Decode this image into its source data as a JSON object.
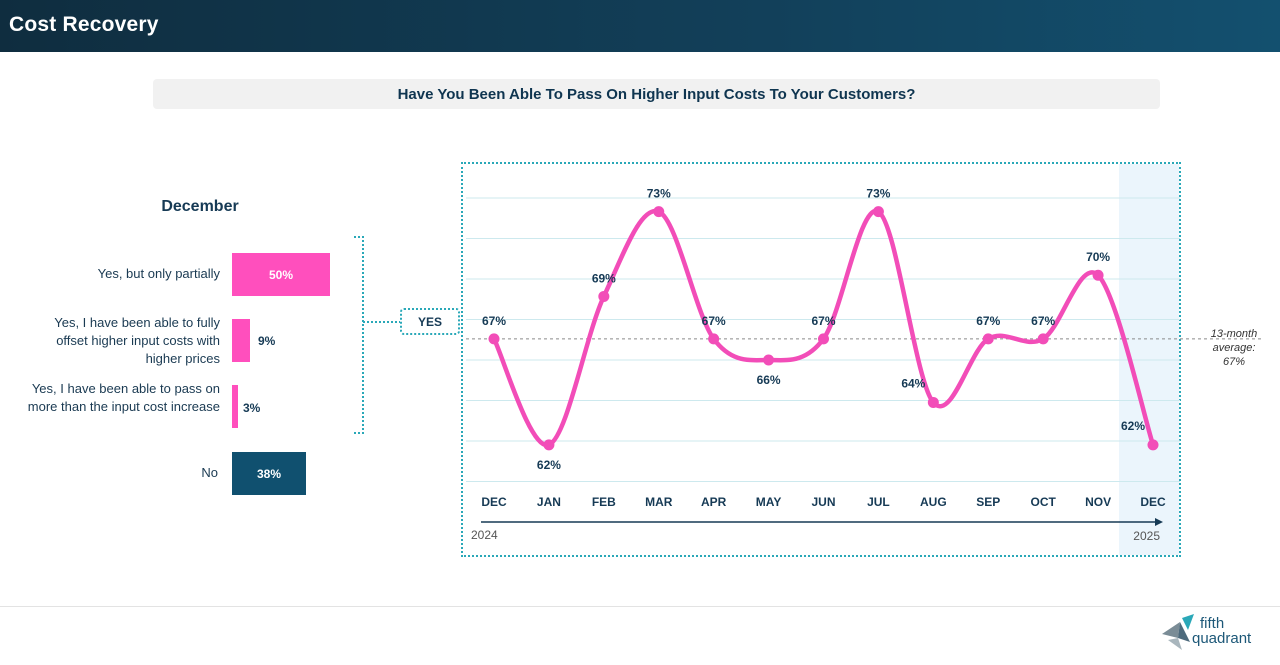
{
  "header": {
    "title": "Cost Recovery"
  },
  "question": "Have You Been Able To Pass On Higher Input Costs To Your Customers?",
  "breakdown": {
    "title": "December",
    "group_label": "YES",
    "items": [
      {
        "label": "Yes, but only partially",
        "value": 50,
        "value_text": "50%",
        "color": "#ff4fbd"
      },
      {
        "label": "Yes, I have been able to fully offset higher input costs with higher prices",
        "value": 9,
        "value_text": "9%",
        "color": "#ff4fbd"
      },
      {
        "label": "Yes, I have been able to pass on more than the input cost increase",
        "value": 3,
        "value_text": "3%",
        "color": "#ff4fbd"
      },
      {
        "label": "No",
        "value": 38,
        "value_text": "38%",
        "color": "#10506f"
      }
    ]
  },
  "chart_data": {
    "type": "line",
    "categories": [
      "DEC",
      "JAN",
      "FEB",
      "MAR",
      "APR",
      "MAY",
      "JUN",
      "JUL",
      "AUG",
      "SEP",
      "OCT",
      "NOV",
      "DEC"
    ],
    "series": [
      {
        "name": "Yes",
        "values": [
          67,
          62,
          69,
          73,
          67,
          66,
          67,
          73,
          64,
          67,
          67,
          70,
          62
        ],
        "color": "#f24db8"
      }
    ],
    "data_labels": [
      "67%",
      "62%",
      "69%",
      "73%",
      "67%",
      "66%",
      "67%",
      "73%",
      "64%",
      "67%",
      "67%",
      "70%",
      "62%"
    ],
    "label_position": [
      "above",
      "below",
      "above",
      "above",
      "above",
      "below",
      "above",
      "above",
      "left",
      "above",
      "above",
      "above",
      "left"
    ],
    "average": {
      "value": 67,
      "label_line1": "13-month",
      "label_line2": "average:",
      "label_line3": "67%"
    },
    "ylim": [
      60.2,
      75.2
    ],
    "highlight_last": true,
    "year_start": "2024",
    "year_end": "2025",
    "grid": true
  },
  "logo": {
    "line1": "fifth",
    "line2": "quadrant"
  },
  "colors": {
    "pink": "#f24db8",
    "navy": "#10506f",
    "teal": "#2aa8b8"
  }
}
